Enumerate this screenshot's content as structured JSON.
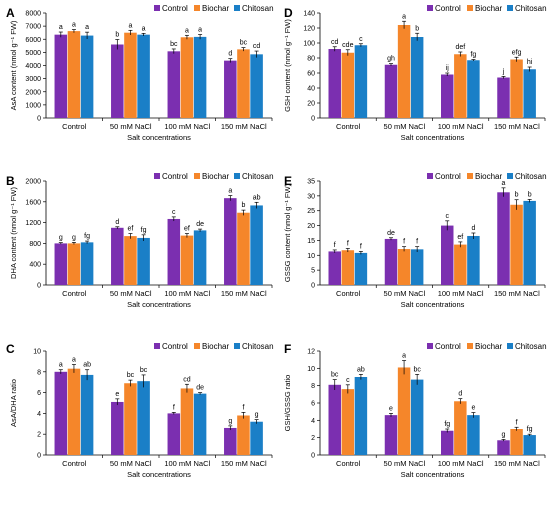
{
  "chart_data": [
    {
      "panel": "A",
      "type": "bar",
      "categories": [
        "Control",
        "50 mM NaCl",
        "100 mM NaCl",
        "150 mM NaCl"
      ],
      "xlabel": "Salt concentrations",
      "ylabel": "AsA content (nmol g⁻¹ FW)",
      "ylim": [
        0,
        8000
      ],
      "yticks": [
        "0",
        "1000",
        "2000",
        "3000",
        "4000",
        "5000",
        "6000",
        "7000",
        "8000"
      ],
      "legend_position": "top-right",
      "series": [
        {
          "name": "Control",
          "values": [
            6350,
            5600,
            5080,
            4370
          ],
          "errors": [
            200,
            380,
            180,
            150
          ],
          "letters": [
            "a",
            "b",
            "bc",
            "d"
          ]
        },
        {
          "name": "Biochar",
          "values": [
            6620,
            6500,
            6150,
            5230
          ],
          "errors": [
            120,
            180,
            150,
            130
          ],
          "letters": [
            "a",
            "a",
            "a",
            "bc"
          ]
        },
        {
          "name": "Chitosan",
          "values": [
            6280,
            6350,
            6180,
            4850
          ],
          "errors": [
            260,
            100,
            180,
            250
          ],
          "letters": [
            "a",
            "a",
            "a",
            "cd"
          ]
        }
      ]
    },
    {
      "panel": "B",
      "type": "bar",
      "categories": [
        "Control",
        "50 mM NaCl",
        "100 mM NaCl",
        "150 mM NaCl"
      ],
      "xlabel": "Salt concentrations",
      "ylabel": "DHA content (nmol g⁻¹ FW)",
      "ylim": [
        0,
        2000
      ],
      "yticks": [
        "0",
        "400",
        "800",
        "1200",
        "1600",
        "2000"
      ],
      "legend_position": "top-right",
      "series": [
        {
          "name": "Control",
          "values": [
            800,
            1100,
            1270,
            1670
          ],
          "errors": [
            15,
            20,
            40,
            50
          ],
          "letters": [
            "g",
            "d",
            "c",
            "a"
          ]
        },
        {
          "name": "Biochar",
          "values": [
            800,
            940,
            950,
            1390
          ],
          "errors": [
            20,
            50,
            40,
            50
          ],
          "letters": [
            "g",
            "ef",
            "ef",
            "b"
          ]
        },
        {
          "name": "Chitosan",
          "values": [
            820,
            905,
            1050,
            1530
          ],
          "errors": [
            25,
            60,
            25,
            60
          ],
          "letters": [
            "fg",
            "fg",
            "de",
            "ab"
          ]
        }
      ]
    },
    {
      "panel": "C",
      "type": "bar",
      "categories": [
        "Control",
        "50 mM NaCl",
        "100 mM NaCl",
        "150 mM NaCl"
      ],
      "xlabel": "Salt concentrations",
      "ylabel": "AsA/DHA ratio",
      "ylim": [
        0,
        10
      ],
      "yticks": [
        "0",
        "2",
        "4",
        "6",
        "8",
        "10"
      ],
      "legend_position": "top-right",
      "series": [
        {
          "name": "Control",
          "values": [
            8.0,
            5.1,
            4.0,
            2.6
          ],
          "errors": [
            0.2,
            0.3,
            0.1,
            0.2
          ],
          "letters": [
            "a",
            "e",
            "f",
            "g"
          ]
        },
        {
          "name": "Biochar",
          "values": [
            8.3,
            6.9,
            6.4,
            3.8
          ],
          "errors": [
            0.4,
            0.3,
            0.4,
            0.3
          ],
          "letters": [
            "a",
            "bc",
            "cd",
            "f"
          ]
        },
        {
          "name": "Chitosan",
          "values": [
            7.7,
            7.1,
            5.9,
            3.2
          ],
          "errors": [
            0.5,
            0.6,
            0.1,
            0.2
          ],
          "letters": [
            "ab",
            "bc",
            "de",
            "g"
          ]
        }
      ]
    },
    {
      "panel": "D",
      "type": "bar",
      "categories": [
        "Control",
        "50 mM NaCl",
        "100 mM NaCl",
        "150 mM NaCl"
      ],
      "xlabel": "Salt concentrations",
      "ylabel": "GSH content (nmol g⁻¹ FW)",
      "ylim": [
        0,
        140
      ],
      "yticks": [
        "0",
        "20",
        "40",
        "60",
        "80",
        "100",
        "120",
        "140"
      ],
      "legend_position": "top-right",
      "series": [
        {
          "name": "Control",
          "values": [
            92,
            71,
            58,
            54
          ],
          "errors": [
            3,
            1.5,
            2,
            1.5
          ],
          "letters": [
            "cd",
            "gh",
            "ij",
            "j"
          ]
        },
        {
          "name": "Biochar",
          "values": [
            87,
            124,
            85,
            78
          ],
          "errors": [
            4,
            5,
            3,
            3
          ],
          "letters": [
            "cde",
            "a",
            "def",
            "efg"
          ]
        },
        {
          "name": "Chitosan",
          "values": [
            97,
            108,
            77,
            65
          ],
          "errors": [
            2,
            5,
            1,
            3
          ],
          "letters": [
            "c",
            "b",
            "fg",
            "hi"
          ]
        }
      ]
    },
    {
      "panel": "E",
      "type": "bar",
      "categories": [
        "Control",
        "50 mM NaCl",
        "100 mM NaCl",
        "150 mM NaCl"
      ],
      "xlabel": "Salt concentrations",
      "ylabel": "GSSG content (nmol g⁻¹ FW)",
      "ylim": [
        0,
        35
      ],
      "yticks": [
        "0",
        "5",
        "10",
        "15",
        "20",
        "25",
        "30",
        "35"
      ],
      "legend_position": "top-right",
      "series": [
        {
          "name": "Control",
          "values": [
            11.3,
            15.5,
            20.0,
            31.2
          ],
          "errors": [
            0.5,
            0.4,
            1.6,
            1.5
          ],
          "letters": [
            "f",
            "de",
            "c",
            "a"
          ]
        },
        {
          "name": "Biochar",
          "values": [
            11.7,
            12.1,
            13.6,
            27.0
          ],
          "errors": [
            0.6,
            0.8,
            0.9,
            1.7
          ],
          "letters": [
            "f",
            "f",
            "ef",
            "b"
          ]
        },
        {
          "name": "Chitosan",
          "values": [
            10.8,
            12.0,
            16.5,
            28.3
          ],
          "errors": [
            0.5,
            0.9,
            1.0,
            0.5
          ],
          "letters": [
            "f",
            "f",
            "d",
            "b"
          ]
        }
      ]
    },
    {
      "panel": "F",
      "type": "bar",
      "categories": [
        "Control",
        "50 mM NaCl",
        "100 mM NaCl",
        "150 mM NaCl"
      ],
      "xlabel": "Salt concentrations",
      "ylabel": "GSH/GSSG ratio",
      "ylim": [
        0,
        12
      ],
      "yticks": [
        "0",
        "2",
        "4",
        "6",
        "8",
        "10",
        "12"
      ],
      "legend_position": "top-right",
      "series": [
        {
          "name": "Control",
          "values": [
            8.1,
            4.6,
            2.8,
            1.7
          ],
          "errors": [
            0.6,
            0.2,
            0.2,
            0.1
          ],
          "letters": [
            "bc",
            "e",
            "fg",
            "g"
          ]
        },
        {
          "name": "Biochar",
          "values": [
            7.6,
            10.1,
            6.2,
            3.0
          ],
          "errors": [
            0.5,
            0.8,
            0.3,
            0.2
          ],
          "letters": [
            "c",
            "a",
            "d",
            "f"
          ]
        },
        {
          "name": "Chitosan",
          "values": [
            9.0,
            8.7,
            4.6,
            2.3
          ],
          "errors": [
            0.3,
            0.6,
            0.3,
            0.1
          ],
          "letters": [
            "ab",
            "bc",
            "e",
            "fg"
          ]
        }
      ]
    }
  ],
  "colors": {
    "Control": "#7b2fb0",
    "Biochar": "#f5862a",
    "Chitosan": "#1a7fc7"
  }
}
